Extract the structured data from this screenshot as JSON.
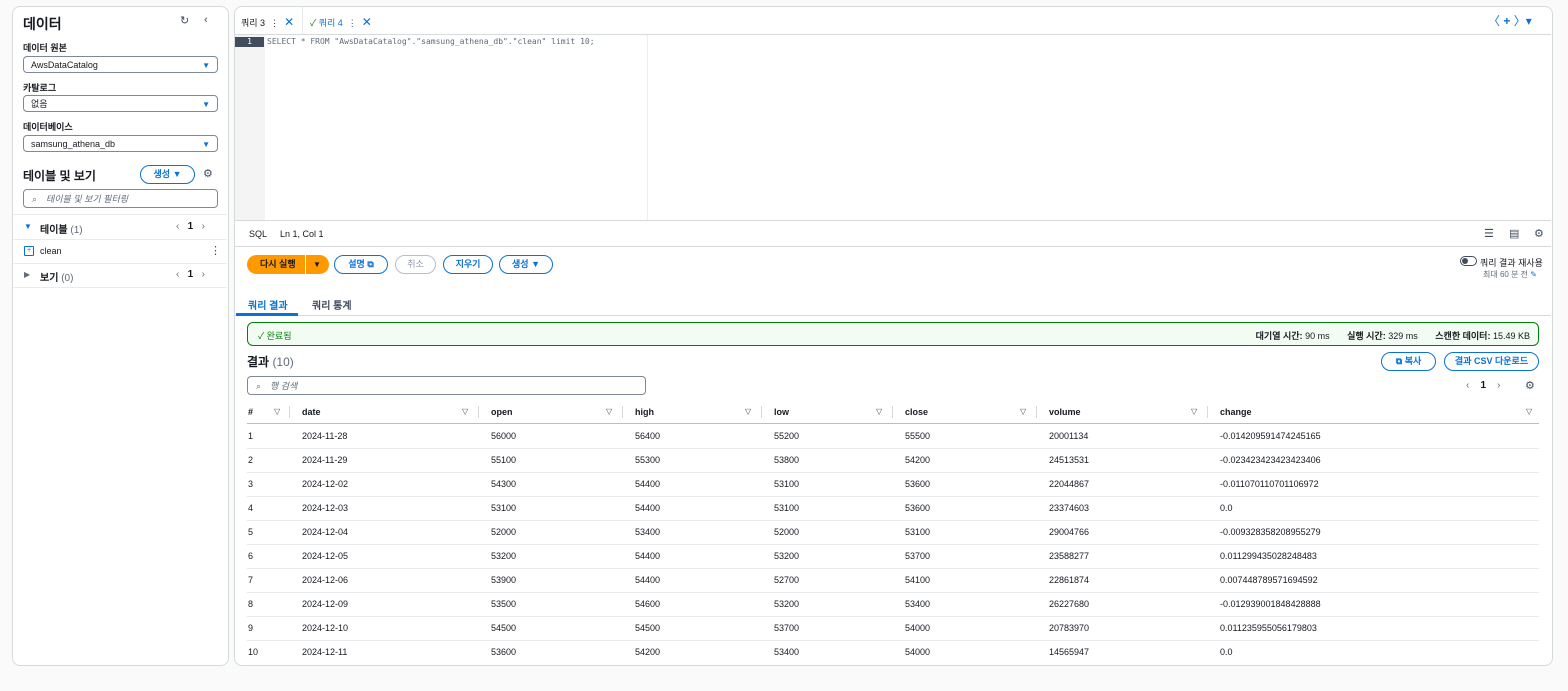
{
  "sidebar": {
    "title": "데이터",
    "data_source_label": "데이터 원본",
    "data_source": "AwsDataCatalog",
    "catalog_label": "카탈로그",
    "catalog": "없음",
    "database_label": "데이터베이스",
    "database": "samsung_athena_db",
    "tables_views_title": "테이블 및 보기",
    "create_button": "생성",
    "filter_placeholder": "테이블 및 보기 필터링",
    "tables_label": "테이블",
    "tables_count": "(1)",
    "tables_page": "1",
    "table_items": [
      "clean"
    ],
    "views_label": "보기",
    "views_count": "(0)",
    "views_page": "1"
  },
  "editor": {
    "tabs": [
      "쿼리 3",
      "쿼리 4"
    ],
    "line_number": "1",
    "query": "SELECT * FROM \"AwsDataCatalog\".\"samsung_athena_db\".\"clean\" limit 10;",
    "status_lang": "SQL",
    "cursor": "Ln 1, Col 1"
  },
  "actions": {
    "run_again": "다시 실행",
    "explain": "설명",
    "cancel": "취소",
    "clear": "지우기",
    "create": "생성",
    "reuse_results": "쿼리 결과 재사용",
    "reuse_age": "최대 60 분 전"
  },
  "results": {
    "tabs": [
      "쿼리 결과",
      "쿼리 통계"
    ],
    "status": "완료됨",
    "queue_label": "대기열 시간:",
    "queue": "90 ms",
    "run_label": "실행 시간:",
    "run": "329 ms",
    "scanned_label": "스캔한 데이터:",
    "scanned": "15.49 KB",
    "title": "결과",
    "count": "(10)",
    "copy": "복사",
    "download": "결과 CSV 다운로드",
    "search_placeholder": "행 검색",
    "page": "1",
    "table": {
      "columns": [
        "#",
        "date",
        "open",
        "high",
        "low",
        "close",
        "volume",
        "change"
      ],
      "rows": [
        [
          "1",
          "2024-11-28",
          "56000",
          "56400",
          "55200",
          "55500",
          "20001134",
          "-0.014209591474245165"
        ],
        [
          "2",
          "2024-11-29",
          "55100",
          "55300",
          "53800",
          "54200",
          "24513531",
          "-0.023423423423423406"
        ],
        [
          "3",
          "2024-12-02",
          "54300",
          "54400",
          "53100",
          "53600",
          "22044867",
          "-0.011070110701106972"
        ],
        [
          "4",
          "2024-12-03",
          "53100",
          "54400",
          "53100",
          "53600",
          "23374603",
          "0.0"
        ],
        [
          "5",
          "2024-12-04",
          "52000",
          "53400",
          "52000",
          "53100",
          "29004766",
          "-0.009328358208955279"
        ],
        [
          "6",
          "2024-12-05",
          "53200",
          "54400",
          "53200",
          "53700",
          "23588277",
          "0.011299435028248483"
        ],
        [
          "7",
          "2024-12-06",
          "53900",
          "54400",
          "52700",
          "54100",
          "22861874",
          "0.007448789571694592"
        ],
        [
          "8",
          "2024-12-09",
          "53500",
          "54600",
          "53200",
          "53400",
          "26227680",
          "-0.012939001848428888"
        ],
        [
          "9",
          "2024-12-10",
          "54500",
          "54500",
          "53700",
          "54000",
          "20783970",
          "0.011235955056179803"
        ],
        [
          "10",
          "2024-12-11",
          "53600",
          "54200",
          "53400",
          "54000",
          "14565947",
          "0.0"
        ]
      ]
    }
  }
}
